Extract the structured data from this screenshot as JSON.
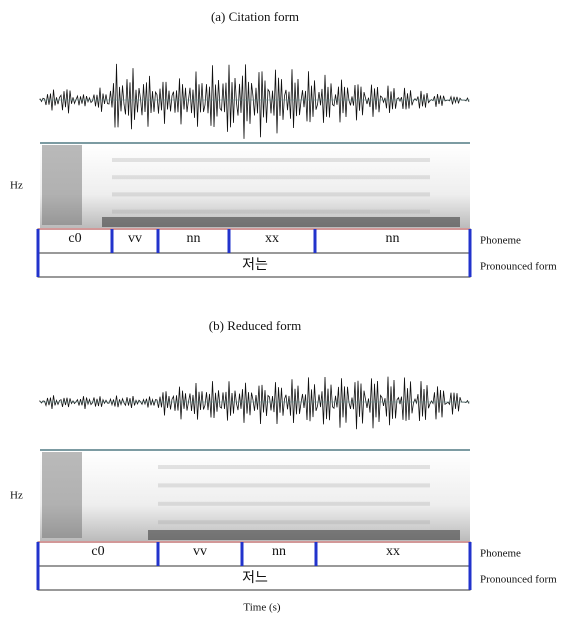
{
  "panels": [
    {
      "title": "(a) Citation form",
      "y_label": "Hz",
      "phonemes": [
        "c0",
        "vv",
        "nn",
        "xx",
        "nn"
      ],
      "word": "저는",
      "tier_labels": [
        "Phoneme",
        "Pronounced form"
      ]
    },
    {
      "title": "(b) Reduced form",
      "y_label": "Hz",
      "phonemes": [
        "c0",
        "vv",
        "nn",
        "xx"
      ],
      "word": "저느",
      "tier_labels": [
        "Phoneme",
        "Pronounced form"
      ]
    }
  ],
  "x_label": "Time (s)"
}
